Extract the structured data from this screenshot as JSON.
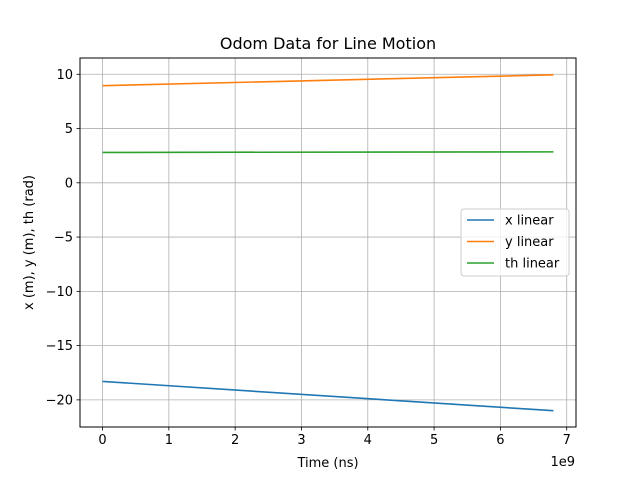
{
  "chart_data": {
    "type": "line",
    "title": "Odom Data for Line Motion",
    "xlabel": "Time (ns)",
    "ylabel": "x (m), y (m), th (rad)",
    "x_offset_text": "1e9",
    "xlim": [
      -0.34,
      7.14
    ],
    "ylim": [
      -22.5,
      11.5
    ],
    "x_ticks": [
      0,
      1,
      2,
      3,
      4,
      5,
      6,
      7
    ],
    "x_tick_labels": [
      "0",
      "1",
      "2",
      "3",
      "4",
      "5",
      "6",
      "7"
    ],
    "y_ticks": [
      -20,
      -15,
      -10,
      -5,
      0,
      5,
      10
    ],
    "y_tick_labels": [
      "−20",
      "−15",
      "−10",
      "−5",
      "0",
      "5",
      "10"
    ],
    "grid": true,
    "legend_position": "center-right",
    "series": [
      {
        "name": "x linear",
        "color": "#1f77b4",
        "x": [
          0,
          6.8
        ],
        "y": [
          -18.3,
          -21.0
        ]
      },
      {
        "name": "y linear",
        "color": "#ff7f0e",
        "x": [
          0,
          6.8
        ],
        "y": [
          8.95,
          9.95
        ]
      },
      {
        "name": "th linear",
        "color": "#2ca02c",
        "x": [
          0,
          6.8
        ],
        "y": [
          2.8,
          2.85
        ]
      }
    ]
  }
}
